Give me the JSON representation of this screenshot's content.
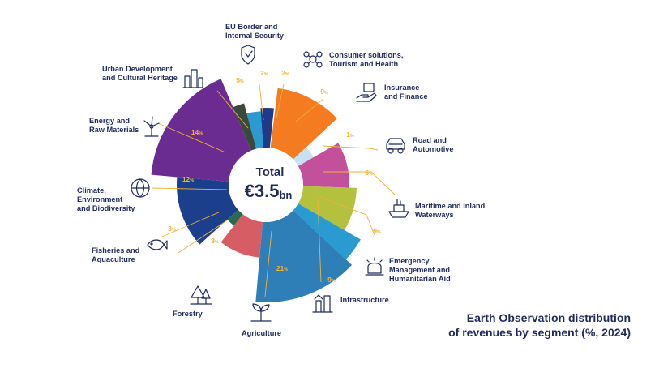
{
  "chart_data": {
    "type": "pie",
    "variant": "polar area (variable radius)",
    "title_lines": [
      "Earth Observation distribution",
      "of revenues by segment (%, 2024)"
    ],
    "center": {
      "total_label": "Total",
      "amount_main": "€3.5",
      "amount_unit": "bn"
    },
    "pct_suffix": "%",
    "segments": [
      {
        "name": "EU Border and Internal Security",
        "label_lines": [
          "EU Border and",
          "Internal Security"
        ],
        "value": 2,
        "color": "#2a9bd1",
        "icon": "shield-icon"
      },
      {
        "name": "Consumer solutions, Tourism and Health",
        "label_lines": [
          "Consumer solutions,",
          "Tourism and Health"
        ],
        "value": 2,
        "color": "#1e3a8a",
        "icon": "people-network-icon"
      },
      {
        "name": "Insurance and Finance",
        "label_lines": [
          "Insurance",
          "and Finance"
        ],
        "value": 9,
        "color": "#f47b20",
        "icon": "hand-coin-icon"
      },
      {
        "name": "Road and Automotive",
        "label_lines": [
          "Road and",
          "Automotive"
        ],
        "value": 1,
        "color": "#c6e2f0",
        "icon": "car-icon"
      },
      {
        "name": "Maritime and Inland Waterways",
        "label_lines": [
          "Maritime and Inland",
          "Waterways"
        ],
        "value": 5,
        "color": "#c2509a",
        "icon": "ship-icon"
      },
      {
        "name": "Emergency Management and Humanitarian Aid",
        "label_lines": [
          "Emergency",
          "Management and",
          "Humanitarian Aid"
        ],
        "value": 9,
        "color": "#b4c13f",
        "icon": "siren-icon"
      },
      {
        "name": "Infrastructure",
        "label_lines": [
          "Infrastructure"
        ],
        "value": 9,
        "color": "#2a9bd1",
        "icon": "infrastructure-icon"
      },
      {
        "name": "Agriculture",
        "label_lines": [
          "Agriculture"
        ],
        "value": 21,
        "color": "#2e7fb8",
        "icon": "sprout-icon"
      },
      {
        "name": "Forestry",
        "label_lines": [
          "Forestry"
        ],
        "value": 8,
        "color": "#d65d63",
        "icon": "tree-icon"
      },
      {
        "name": "Fisheries and Aquaculture",
        "label_lines": [
          "Fisheries and",
          "Aquaculture"
        ],
        "value": 3,
        "color": "#2a6b4f",
        "icon": "fish-icon"
      },
      {
        "name": "Climate, Environment and Biodiversity",
        "label_lines": [
          "Climate,",
          "Environment",
          "and Biodiversity"
        ],
        "value": 12,
        "color": "#1c3f8c",
        "icon": "globe-icon"
      },
      {
        "name": "Energy and Raw Materials",
        "label_lines": [
          "Energy and",
          "Raw Materials"
        ],
        "value": 14,
        "color": "#6b2c91",
        "icon": "wind-turbine-icon"
      },
      {
        "name": "Urban Development and Cultural Heritage",
        "label_lines": [
          "Urban Development",
          "and Cultural Heritage"
        ],
        "value": 5,
        "color": "#3a4a3a",
        "icon": "city-icon"
      }
    ]
  }
}
